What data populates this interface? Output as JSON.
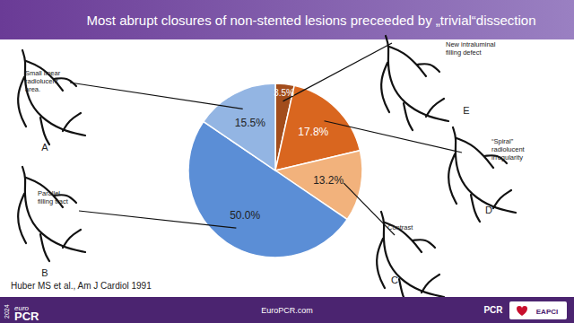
{
  "chart_data": {
    "type": "pie",
    "title": "Most abrupt closures of non-stented lesions preceeded by „trivial“dissection",
    "categories": [
      "E",
      "D",
      "C",
      "B",
      "A"
    ],
    "values": [
      3.5,
      17.8,
      13.2,
      50.0,
      15.5
    ],
    "value_labels": [
      "3.5%",
      "17.8%",
      "13.2%",
      "50.0%",
      "15.5%"
    ],
    "colors": [
      "#a24d1c",
      "#d9661f",
      "#f2b27c",
      "#5b8ed6",
      "#93b5e3"
    ],
    "data_labels": true,
    "annotations": [
      "New intraluminal\nfilling defect",
      "“Spiral”\nradiolucent\nirregularity",
      "Contrast",
      "Parallel\nfilling tract",
      "Small linear\nradiolucent\narea."
    ]
  },
  "citation": "Huber MS et al., Am J Cardiol 1991",
  "footer": {
    "site": "EuroPCR.com",
    "logo": [
      "euro",
      "PCR"
    ],
    "year": "2024",
    "partners": [
      "PCR",
      "EAPCI"
    ]
  }
}
